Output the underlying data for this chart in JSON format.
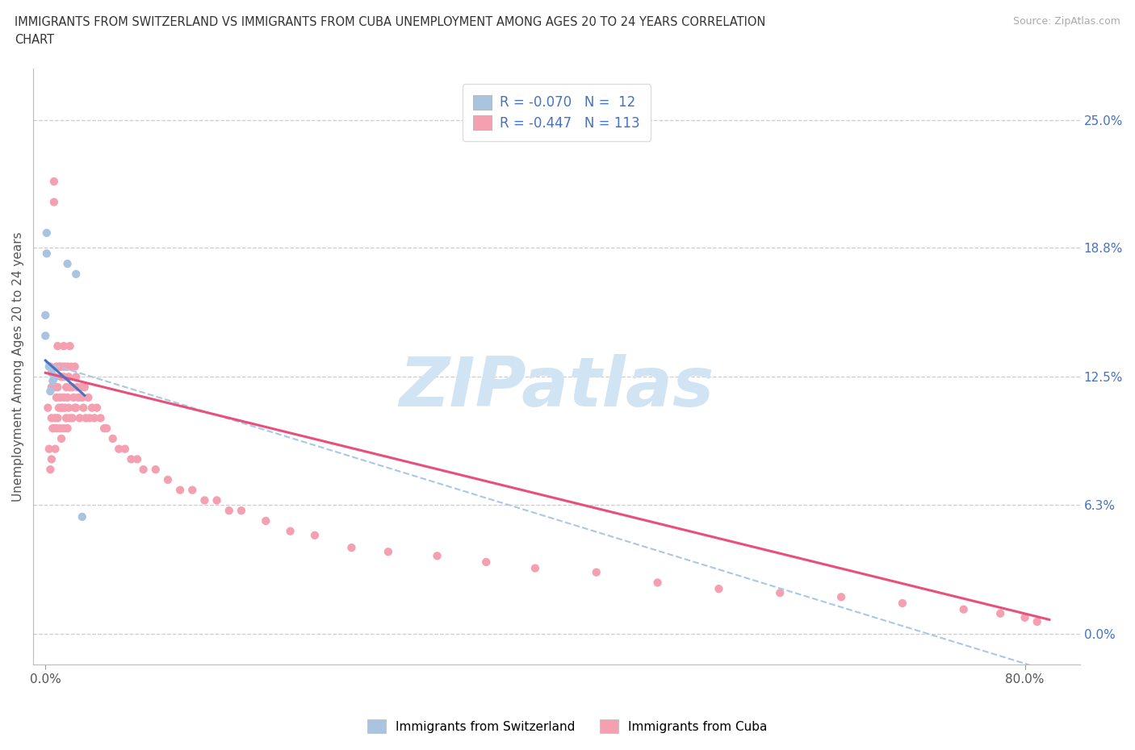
{
  "title_line1": "IMMIGRANTS FROM SWITZERLAND VS IMMIGRANTS FROM CUBA UNEMPLOYMENT AMONG AGES 20 TO 24 YEARS CORRELATION",
  "title_line2": "CHART",
  "source_text": "Source: ZipAtlas.com",
  "ylabel": "Unemployment Among Ages 20 to 24 years",
  "right_yticklabels": [
    "0.0%",
    "6.3%",
    "12.5%",
    "18.8%",
    "25.0%"
  ],
  "right_ytick_vals": [
    0.0,
    0.063,
    0.125,
    0.188,
    0.25
  ],
  "xticklabels_shown": [
    "0.0%",
    "80.0%"
  ],
  "xtick_vals_shown": [
    0.0,
    0.8
  ],
  "xlim": [
    -0.01,
    0.845
  ],
  "ylim": [
    -0.015,
    0.275
  ],
  "sw_color": "#a8c4e0",
  "cuba_color": "#f4a0b0",
  "sw_trend_color": "#4472c4",
  "cuba_trend_color": "#e8507a",
  "dashed_color": "#a8c8e8",
  "watermark_color": "#d0e4f4",
  "legend_text_color": "#4472c4",
  "label_sw": "Immigrants from Switzerland",
  "label_cuba": "Immigrants from Cuba",
  "sw_x": [
    0.0,
    0.0,
    0.001,
    0.001,
    0.003,
    0.004,
    0.005,
    0.006,
    0.008,
    0.018,
    0.025,
    0.03
  ],
  "sw_y": [
    0.145,
    0.155,
    0.185,
    0.195,
    0.13,
    0.118,
    0.127,
    0.123,
    0.125,
    0.18,
    0.175,
    0.057
  ],
  "cuba_x": [
    0.002,
    0.003,
    0.004,
    0.004,
    0.005,
    0.005,
    0.005,
    0.006,
    0.006,
    0.007,
    0.007,
    0.007,
    0.008,
    0.008,
    0.008,
    0.009,
    0.009,
    0.009,
    0.01,
    0.01,
    0.01,
    0.011,
    0.011,
    0.012,
    0.012,
    0.012,
    0.013,
    0.013,
    0.013,
    0.014,
    0.014,
    0.015,
    0.015,
    0.015,
    0.015,
    0.016,
    0.016,
    0.017,
    0.017,
    0.018,
    0.018,
    0.018,
    0.019,
    0.019,
    0.02,
    0.02,
    0.02,
    0.021,
    0.022,
    0.022,
    0.023,
    0.024,
    0.024,
    0.025,
    0.025,
    0.026,
    0.027,
    0.028,
    0.029,
    0.03,
    0.031,
    0.032,
    0.033,
    0.035,
    0.036,
    0.038,
    0.04,
    0.042,
    0.045,
    0.048,
    0.05,
    0.055,
    0.06,
    0.065,
    0.07,
    0.075,
    0.08,
    0.09,
    0.1,
    0.11,
    0.12,
    0.13,
    0.14,
    0.15,
    0.16,
    0.18,
    0.2,
    0.22,
    0.25,
    0.28,
    0.32,
    0.36,
    0.4,
    0.45,
    0.5,
    0.55,
    0.6,
    0.65,
    0.7,
    0.75,
    0.78,
    0.8,
    0.81
  ],
  "cuba_y": [
    0.11,
    0.09,
    0.08,
    0.13,
    0.12,
    0.105,
    0.085,
    0.12,
    0.1,
    0.22,
    0.21,
    0.1,
    0.12,
    0.105,
    0.09,
    0.13,
    0.115,
    0.1,
    0.14,
    0.12,
    0.105,
    0.13,
    0.11,
    0.13,
    0.115,
    0.1,
    0.125,
    0.11,
    0.095,
    0.13,
    0.11,
    0.14,
    0.125,
    0.115,
    0.1,
    0.13,
    0.11,
    0.12,
    0.105,
    0.13,
    0.115,
    0.1,
    0.125,
    0.11,
    0.14,
    0.12,
    0.105,
    0.13,
    0.12,
    0.105,
    0.115,
    0.13,
    0.11,
    0.125,
    0.11,
    0.12,
    0.115,
    0.105,
    0.12,
    0.115,
    0.11,
    0.12,
    0.105,
    0.115,
    0.105,
    0.11,
    0.105,
    0.11,
    0.105,
    0.1,
    0.1,
    0.095,
    0.09,
    0.09,
    0.085,
    0.085,
    0.08,
    0.08,
    0.075,
    0.07,
    0.07,
    0.065,
    0.065,
    0.06,
    0.06,
    0.055,
    0.05,
    0.048,
    0.042,
    0.04,
    0.038,
    0.035,
    0.032,
    0.03,
    0.025,
    0.022,
    0.02,
    0.018,
    0.015,
    0.012,
    0.01,
    0.008,
    0.006
  ],
  "sw_trend_x0": 0.0,
  "sw_trend_y0": 0.133,
  "sw_trend_x1": 0.032,
  "sw_trend_y1": 0.116,
  "cuba_trend_x0": 0.0,
  "cuba_trend_y0": 0.127,
  "cuba_trend_x1": 0.82,
  "cuba_trend_y1": 0.007,
  "dashed_trend_x0": 0.0,
  "dashed_trend_y0": 0.132,
  "dashed_trend_x1": 0.82,
  "dashed_trend_y1": -0.018
}
